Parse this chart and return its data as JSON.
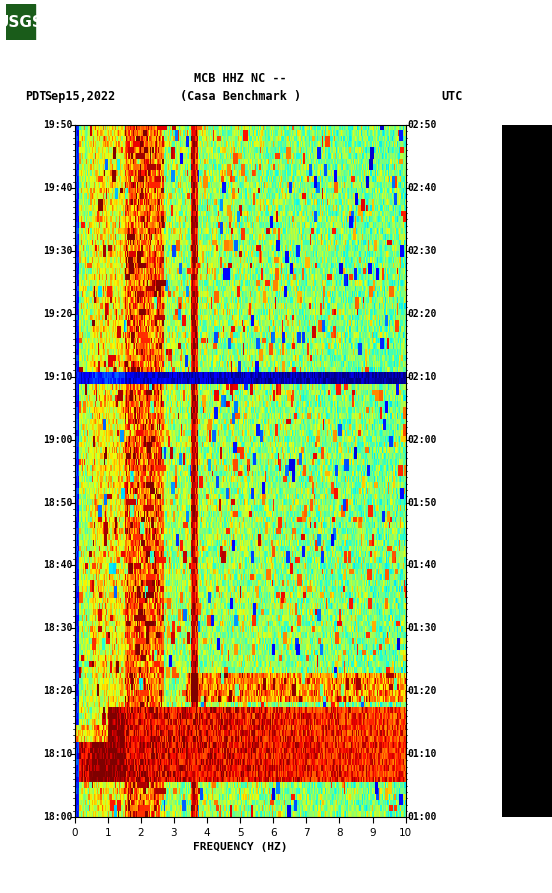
{
  "title_line1": "MCB HHZ NC --",
  "title_line2": "(Casa Benchmark )",
  "date_label": "Sep15,2022",
  "left_tz": "PDT",
  "right_tz": "UTC",
  "left_times": [
    "18:00",
    "18:10",
    "18:20",
    "18:30",
    "18:40",
    "18:50",
    "19:00",
    "19:10",
    "19:20",
    "19:30",
    "19:40",
    "19:50"
  ],
  "right_times": [
    "01:00",
    "01:10",
    "01:20",
    "01:30",
    "01:40",
    "01:50",
    "02:00",
    "02:10",
    "02:20",
    "02:30",
    "02:40",
    "02:50"
  ],
  "xlabel": "FREQUENCY (HZ)",
  "xmin": 0,
  "xmax": 10,
  "xticks": [
    0,
    1,
    2,
    3,
    4,
    5,
    6,
    7,
    8,
    9,
    10
  ],
  "fig_width": 5.52,
  "fig_height": 8.93,
  "dpi": 100,
  "bg_color": "#ffffff",
  "random_seed": 42
}
